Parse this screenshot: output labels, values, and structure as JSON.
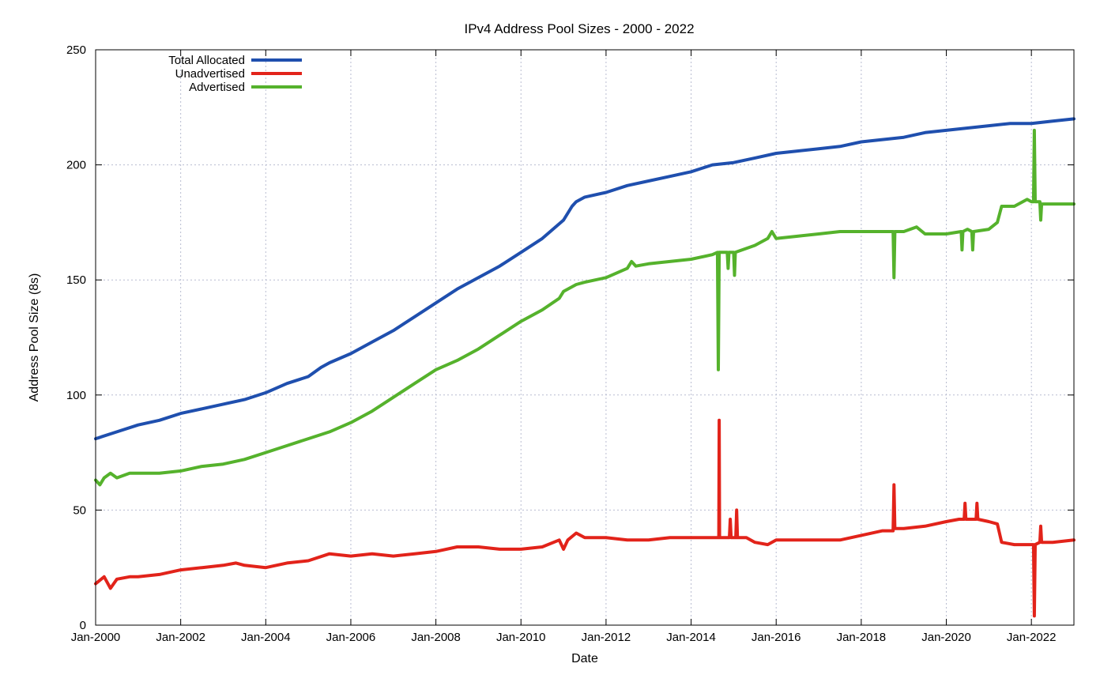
{
  "chart_data": {
    "type": "line",
    "title": "IPv4 Address Pool Sizes - 2000 - 2022",
    "xlabel": "Date",
    "ylabel": "Address Pool Size (8s)",
    "xlim": [
      2000.0,
      2023.0
    ],
    "ylim": [
      0,
      250
    ],
    "yticks": [
      0,
      50,
      100,
      150,
      200,
      250
    ],
    "xticks": [
      {
        "x": 2000,
        "label": "Jan-2000"
      },
      {
        "x": 2002,
        "label": "Jan-2002"
      },
      {
        "x": 2004,
        "label": "Jan-2004"
      },
      {
        "x": 2006,
        "label": "Jan-2006"
      },
      {
        "x": 2008,
        "label": "Jan-2008"
      },
      {
        "x": 2010,
        "label": "Jan-2010"
      },
      {
        "x": 2012,
        "label": "Jan-2012"
      },
      {
        "x": 2014,
        "label": "Jan-2014"
      },
      {
        "x": 2016,
        "label": "Jan-2016"
      },
      {
        "x": 2018,
        "label": "Jan-2018"
      },
      {
        "x": 2020,
        "label": "Jan-2020"
      },
      {
        "x": 2022,
        "label": "Jan-2022"
      }
    ],
    "grid": true,
    "legend_position": "top-left",
    "series": [
      {
        "name": "Total Allocated",
        "color": "#1f4fae",
        "points": [
          [
            2000.0,
            81
          ],
          [
            2000.5,
            84
          ],
          [
            2001.0,
            87
          ],
          [
            2001.5,
            89
          ],
          [
            2002.0,
            92
          ],
          [
            2002.5,
            94
          ],
          [
            2003.0,
            96
          ],
          [
            2003.5,
            98
          ],
          [
            2004.0,
            101
          ],
          [
            2004.5,
            105
          ],
          [
            2005.0,
            108
          ],
          [
            2005.3,
            112
          ],
          [
            2005.5,
            114
          ],
          [
            2006.0,
            118
          ],
          [
            2006.5,
            123
          ],
          [
            2007.0,
            128
          ],
          [
            2007.5,
            134
          ],
          [
            2008.0,
            140
          ],
          [
            2008.5,
            146
          ],
          [
            2009.0,
            151
          ],
          [
            2009.5,
            156
          ],
          [
            2010.0,
            162
          ],
          [
            2010.5,
            168
          ],
          [
            2011.0,
            176
          ],
          [
            2011.2,
            182
          ],
          [
            2011.3,
            184
          ],
          [
            2011.5,
            186
          ],
          [
            2012.0,
            188
          ],
          [
            2012.5,
            191
          ],
          [
            2013.0,
            193
          ],
          [
            2013.5,
            195
          ],
          [
            2014.0,
            197
          ],
          [
            2014.5,
            200
          ],
          [
            2015.0,
            201
          ],
          [
            2015.5,
            203
          ],
          [
            2016.0,
            205
          ],
          [
            2016.5,
            206
          ],
          [
            2017.0,
            207
          ],
          [
            2017.5,
            208
          ],
          [
            2018.0,
            210
          ],
          [
            2018.5,
            211
          ],
          [
            2019.0,
            212
          ],
          [
            2019.5,
            214
          ],
          [
            2020.0,
            215
          ],
          [
            2020.5,
            216
          ],
          [
            2021.0,
            217
          ],
          [
            2021.5,
            218
          ],
          [
            2022.0,
            218
          ],
          [
            2022.5,
            219
          ],
          [
            2023.0,
            220
          ]
        ]
      },
      {
        "name": "Unadvertised",
        "color": "#e2231a",
        "points": [
          [
            2000.0,
            18
          ],
          [
            2000.2,
            21
          ],
          [
            2000.35,
            16
          ],
          [
            2000.5,
            20
          ],
          [
            2000.8,
            21
          ],
          [
            2001.0,
            21
          ],
          [
            2001.5,
            22
          ],
          [
            2002.0,
            24
          ],
          [
            2002.5,
            25
          ],
          [
            2003.0,
            26
          ],
          [
            2003.3,
            27
          ],
          [
            2003.5,
            26
          ],
          [
            2004.0,
            25
          ],
          [
            2004.5,
            27
          ],
          [
            2005.0,
            28
          ],
          [
            2005.5,
            31
          ],
          [
            2006.0,
            30
          ],
          [
            2006.5,
            31
          ],
          [
            2007.0,
            30
          ],
          [
            2007.5,
            31
          ],
          [
            2008.0,
            32
          ],
          [
            2008.5,
            34
          ],
          [
            2009.0,
            34
          ],
          [
            2009.5,
            33
          ],
          [
            2010.0,
            33
          ],
          [
            2010.5,
            34
          ],
          [
            2010.9,
            37
          ],
          [
            2011.0,
            33
          ],
          [
            2011.1,
            37
          ],
          [
            2011.3,
            40
          ],
          [
            2011.5,
            38
          ],
          [
            2012.0,
            38
          ],
          [
            2012.5,
            37
          ],
          [
            2013.0,
            37
          ],
          [
            2013.5,
            38
          ],
          [
            2014.0,
            38
          ],
          [
            2014.5,
            38
          ],
          [
            2014.65,
            38
          ],
          [
            2014.66,
            89
          ],
          [
            2014.67,
            38
          ],
          [
            2014.9,
            38
          ],
          [
            2014.92,
            46
          ],
          [
            2014.94,
            38
          ],
          [
            2015.05,
            38
          ],
          [
            2015.07,
            50
          ],
          [
            2015.09,
            38
          ],
          [
            2015.3,
            38
          ],
          [
            2015.5,
            36
          ],
          [
            2015.8,
            35
          ],
          [
            2016.0,
            37
          ],
          [
            2016.5,
            37
          ],
          [
            2017.0,
            37
          ],
          [
            2017.5,
            37
          ],
          [
            2018.0,
            39
          ],
          [
            2018.5,
            41
          ],
          [
            2018.75,
            41
          ],
          [
            2018.77,
            61
          ],
          [
            2018.79,
            42
          ],
          [
            2019.0,
            42
          ],
          [
            2019.5,
            43
          ],
          [
            2020.0,
            45
          ],
          [
            2020.3,
            46
          ],
          [
            2020.42,
            46
          ],
          [
            2020.44,
            53
          ],
          [
            2020.46,
            46
          ],
          [
            2020.7,
            46
          ],
          [
            2020.72,
            53
          ],
          [
            2020.74,
            46
          ],
          [
            2021.0,
            45
          ],
          [
            2021.2,
            44
          ],
          [
            2021.3,
            36
          ],
          [
            2021.6,
            35
          ],
          [
            2022.0,
            35
          ],
          [
            2022.05,
            35
          ],
          [
            2022.07,
            4
          ],
          [
            2022.09,
            35
          ],
          [
            2022.2,
            36
          ],
          [
            2022.22,
            43
          ],
          [
            2022.24,
            36
          ],
          [
            2022.5,
            36
          ],
          [
            2023.0,
            37
          ]
        ]
      },
      {
        "name": "Advertised",
        "color": "#55b22c",
        "points": [
          [
            2000.0,
            63
          ],
          [
            2000.1,
            61
          ],
          [
            2000.2,
            64
          ],
          [
            2000.35,
            66
          ],
          [
            2000.5,
            64
          ],
          [
            2000.8,
            66
          ],
          [
            2001.0,
            66
          ],
          [
            2001.5,
            66
          ],
          [
            2002.0,
            67
          ],
          [
            2002.5,
            69
          ],
          [
            2003.0,
            70
          ],
          [
            2003.5,
            72
          ],
          [
            2004.0,
            75
          ],
          [
            2004.5,
            78
          ],
          [
            2005.0,
            81
          ],
          [
            2005.5,
            84
          ],
          [
            2006.0,
            88
          ],
          [
            2006.5,
            93
          ],
          [
            2007.0,
            99
          ],
          [
            2007.5,
            105
          ],
          [
            2008.0,
            111
          ],
          [
            2008.5,
            115
          ],
          [
            2009.0,
            120
          ],
          [
            2009.5,
            126
          ],
          [
            2010.0,
            132
          ],
          [
            2010.5,
            137
          ],
          [
            2010.9,
            142
          ],
          [
            2011.0,
            145
          ],
          [
            2011.3,
            148
          ],
          [
            2011.5,
            149
          ],
          [
            2012.0,
            151
          ],
          [
            2012.5,
            155
          ],
          [
            2012.6,
            158
          ],
          [
            2012.7,
            156
          ],
          [
            2013.0,
            157
          ],
          [
            2013.5,
            158
          ],
          [
            2014.0,
            159
          ],
          [
            2014.5,
            161
          ],
          [
            2014.62,
            162
          ],
          [
            2014.64,
            111
          ],
          [
            2014.66,
            162
          ],
          [
            2014.85,
            162
          ],
          [
            2014.87,
            155
          ],
          [
            2014.89,
            162
          ],
          [
            2015.0,
            162
          ],
          [
            2015.02,
            152
          ],
          [
            2015.04,
            162
          ],
          [
            2015.5,
            165
          ],
          [
            2015.8,
            168
          ],
          [
            2015.9,
            171
          ],
          [
            2016.0,
            168
          ],
          [
            2016.5,
            169
          ],
          [
            2017.0,
            170
          ],
          [
            2017.5,
            171
          ],
          [
            2018.0,
            171
          ],
          [
            2018.5,
            171
          ],
          [
            2018.75,
            171
          ],
          [
            2018.77,
            151
          ],
          [
            2018.79,
            171
          ],
          [
            2019.0,
            171
          ],
          [
            2019.3,
            173
          ],
          [
            2019.5,
            170
          ],
          [
            2020.0,
            170
          ],
          [
            2020.35,
            171
          ],
          [
            2020.37,
            163
          ],
          [
            2020.39,
            171
          ],
          [
            2020.5,
            172
          ],
          [
            2020.6,
            171
          ],
          [
            2020.62,
            163
          ],
          [
            2020.64,
            171
          ],
          [
            2021.0,
            172
          ],
          [
            2021.2,
            175
          ],
          [
            2021.3,
            182
          ],
          [
            2021.6,
            182
          ],
          [
            2021.9,
            185
          ],
          [
            2022.0,
            184
          ],
          [
            2022.05,
            184
          ],
          [
            2022.07,
            215
          ],
          [
            2022.09,
            184
          ],
          [
            2022.2,
            184
          ],
          [
            2022.22,
            176
          ],
          [
            2022.24,
            183
          ],
          [
            2022.5,
            183
          ],
          [
            2023.0,
            183
          ]
        ]
      }
    ]
  }
}
